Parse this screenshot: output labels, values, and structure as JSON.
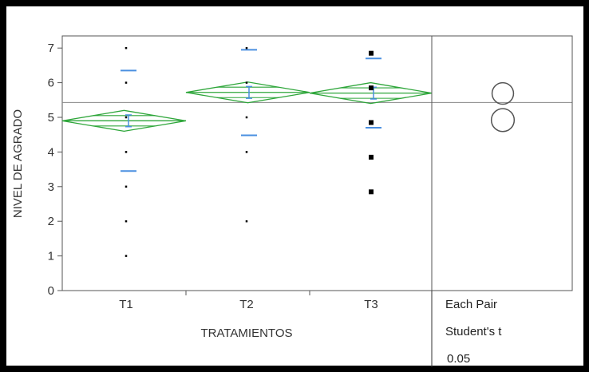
{
  "chart_data": {
    "type": "scatter",
    "subtype": "oneway-anova-means-diamonds",
    "title": "",
    "xlabel": "TRATAMIENTOS",
    "ylabel": "NIVEL DE AGRADO",
    "ylim": [
      0,
      7.35
    ],
    "yticks": [
      0,
      1,
      2,
      3,
      4,
      5,
      6,
      7
    ],
    "categories": [
      "T1",
      "T2",
      "T3"
    ],
    "grand_mean": 5.43,
    "series": [
      {
        "values": [
          [
            1,
            7
          ],
          [
            1,
            6
          ],
          [
            1,
            5
          ],
          [
            1,
            4
          ],
          [
            1,
            3
          ],
          [
            1,
            2
          ],
          [
            1,
            1
          ],
          [
            2,
            7
          ],
          [
            2,
            6
          ],
          [
            2,
            5
          ],
          [
            2,
            4
          ],
          [
            2,
            2
          ],
          [
            3,
            6.85
          ],
          [
            3,
            5.85
          ],
          [
            3,
            4.85
          ],
          [
            3,
            3.85
          ],
          [
            3,
            2.85
          ]
        ]
      }
    ],
    "groups": [
      {
        "category": "T1",
        "mean": 4.9,
        "ci_upper": 5.2,
        "ci_lower": 4.6,
        "overlap_upper": 5.05,
        "overlap_lower": 4.75,
        "sd_upper": 6.35,
        "sd_lower": 3.45,
        "se_upper": 5.07,
        "se_lower": 4.73
      },
      {
        "category": "T2",
        "mean": 5.72,
        "ci_upper": 6.02,
        "ci_lower": 5.42,
        "overlap_upper": 5.87,
        "overlap_lower": 5.57,
        "sd_upper": 6.95,
        "sd_lower": 4.48,
        "se_upper": 5.89,
        "se_lower": 5.55
      },
      {
        "category": "T3",
        "mean": 5.7,
        "ci_upper": 6.0,
        "ci_lower": 5.4,
        "overlap_upper": 5.85,
        "overlap_lower": 5.55,
        "sd_upper": 6.7,
        "sd_lower": 4.7,
        "se_upper": 5.87,
        "se_lower": 5.53
      }
    ],
    "comparison_circles": [
      {
        "center": 5.69,
        "radius": 0.31
      },
      {
        "center": 4.92,
        "radius": 0.33
      }
    ],
    "comparison_label_1": "Each Pair",
    "comparison_label_2": "Student's t",
    "comparison_label_3": "0.05",
    "grid": false,
    "colors": {
      "diamond": "#2ea63a",
      "error_bars": "#4a8fe0",
      "points": "#000000",
      "reference_line": "#888888",
      "axis": "#555555",
      "circles": "#555555"
    }
  }
}
